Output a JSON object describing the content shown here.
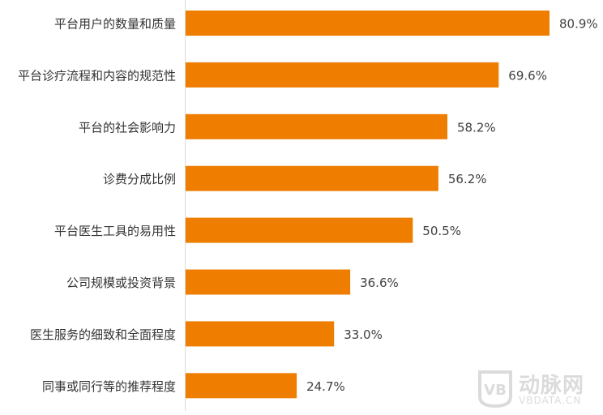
{
  "chart_data": {
    "type": "bar",
    "orientation": "horizontal",
    "categories": [
      "平台用户的数量和质量",
      "平台诊疗流程和内容的规范性",
      "平台的社会影响力",
      "诊费分成比例",
      "平台医生工具的易用性",
      "公司规模或投资背景",
      "医生服务的细致和全面程度",
      "同事或同行等的推荐程度"
    ],
    "values": [
      80.9,
      69.6,
      58.2,
      56.2,
      50.5,
      36.6,
      33.0,
      24.7
    ],
    "value_labels": [
      "80.9%",
      "69.6%",
      "58.2%",
      "56.2%",
      "50.5%",
      "36.6%",
      "33.0%",
      "24.7%"
    ],
    "bar_color": "#EE7D00",
    "grid": false,
    "legend": "none"
  },
  "watermark": {
    "logo_text": "动脉网",
    "url_text": "VBDATA.CN"
  }
}
